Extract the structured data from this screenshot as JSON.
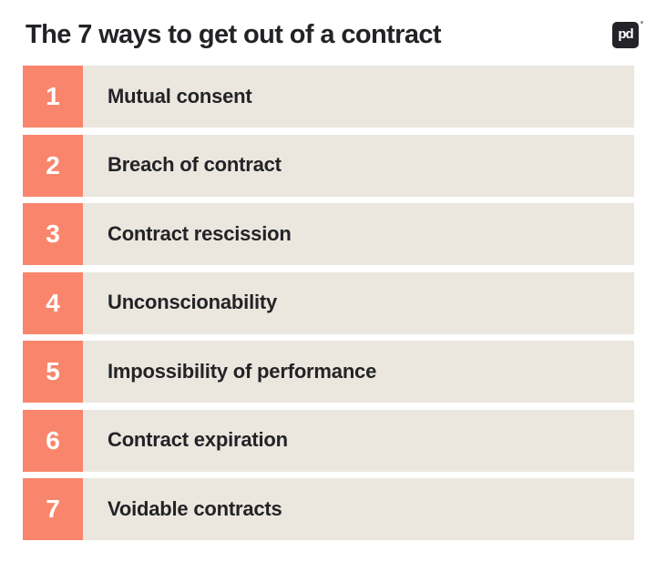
{
  "header": {
    "title": "The 7 ways to get out of a contract",
    "logo": {
      "text": "pd",
      "trademark_icon": "trademark-dot"
    }
  },
  "colors": {
    "accent": "#F9866C",
    "row_bg": "#EBE7DF",
    "text": "#232327",
    "logo_bg": "#232329",
    "number_text": "#FFFFFF",
    "background": "#FFFFFF"
  },
  "list": {
    "items": [
      {
        "number": "1",
        "label": "Mutual consent"
      },
      {
        "number": "2",
        "label": "Breach of contract"
      },
      {
        "number": "3",
        "label": "Contract rescission"
      },
      {
        "number": "4",
        "label": "Unconscionability"
      },
      {
        "number": "5",
        "label": "Impossibility of performance"
      },
      {
        "number": "6",
        "label": "Contract expiration"
      },
      {
        "number": "7",
        "label": "Voidable contracts"
      }
    ]
  }
}
